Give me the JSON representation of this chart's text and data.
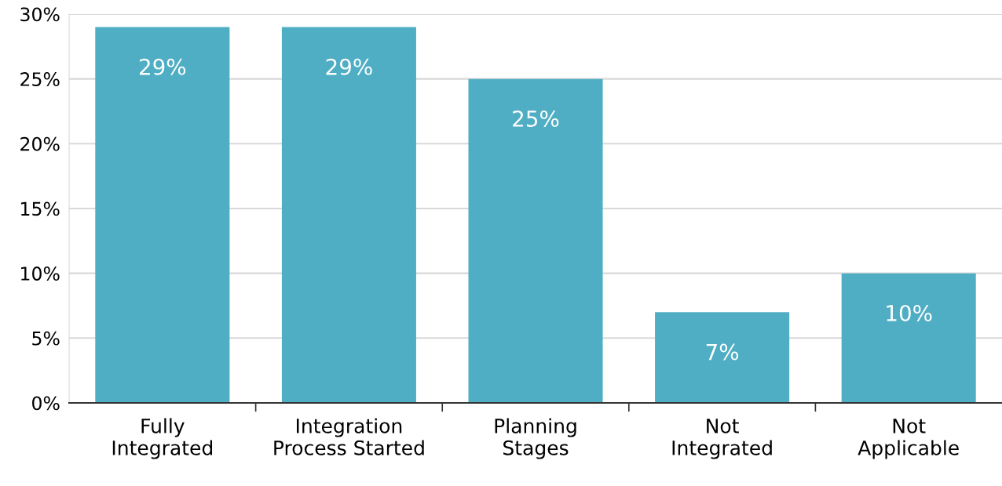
{
  "chart_data": {
    "type": "bar",
    "categories": [
      "Fully\nIntegrated",
      "Integration\nProcess Started",
      "Planning\nStages",
      "Not\nIntegrated",
      "Not\nApplicable"
    ],
    "values": [
      29,
      29,
      25,
      7,
      10
    ],
    "color": "#50aec4",
    "value_labels": [
      "29%",
      "29%",
      "25%",
      "7%",
      "10%"
    ],
    "ylim": [
      0,
      30
    ],
    "yticks": [
      {
        "value": 0,
        "label": "0%"
      },
      {
        "value": 5,
        "label": "5%"
      },
      {
        "value": 10,
        "label": "10%"
      },
      {
        "value": 15,
        "label": "15%"
      },
      {
        "value": 20,
        "label": "20%"
      },
      {
        "value": 25,
        "label": "25%"
      },
      {
        "value": 30,
        "label": "30%"
      }
    ],
    "grid": "y",
    "legend": false
  }
}
